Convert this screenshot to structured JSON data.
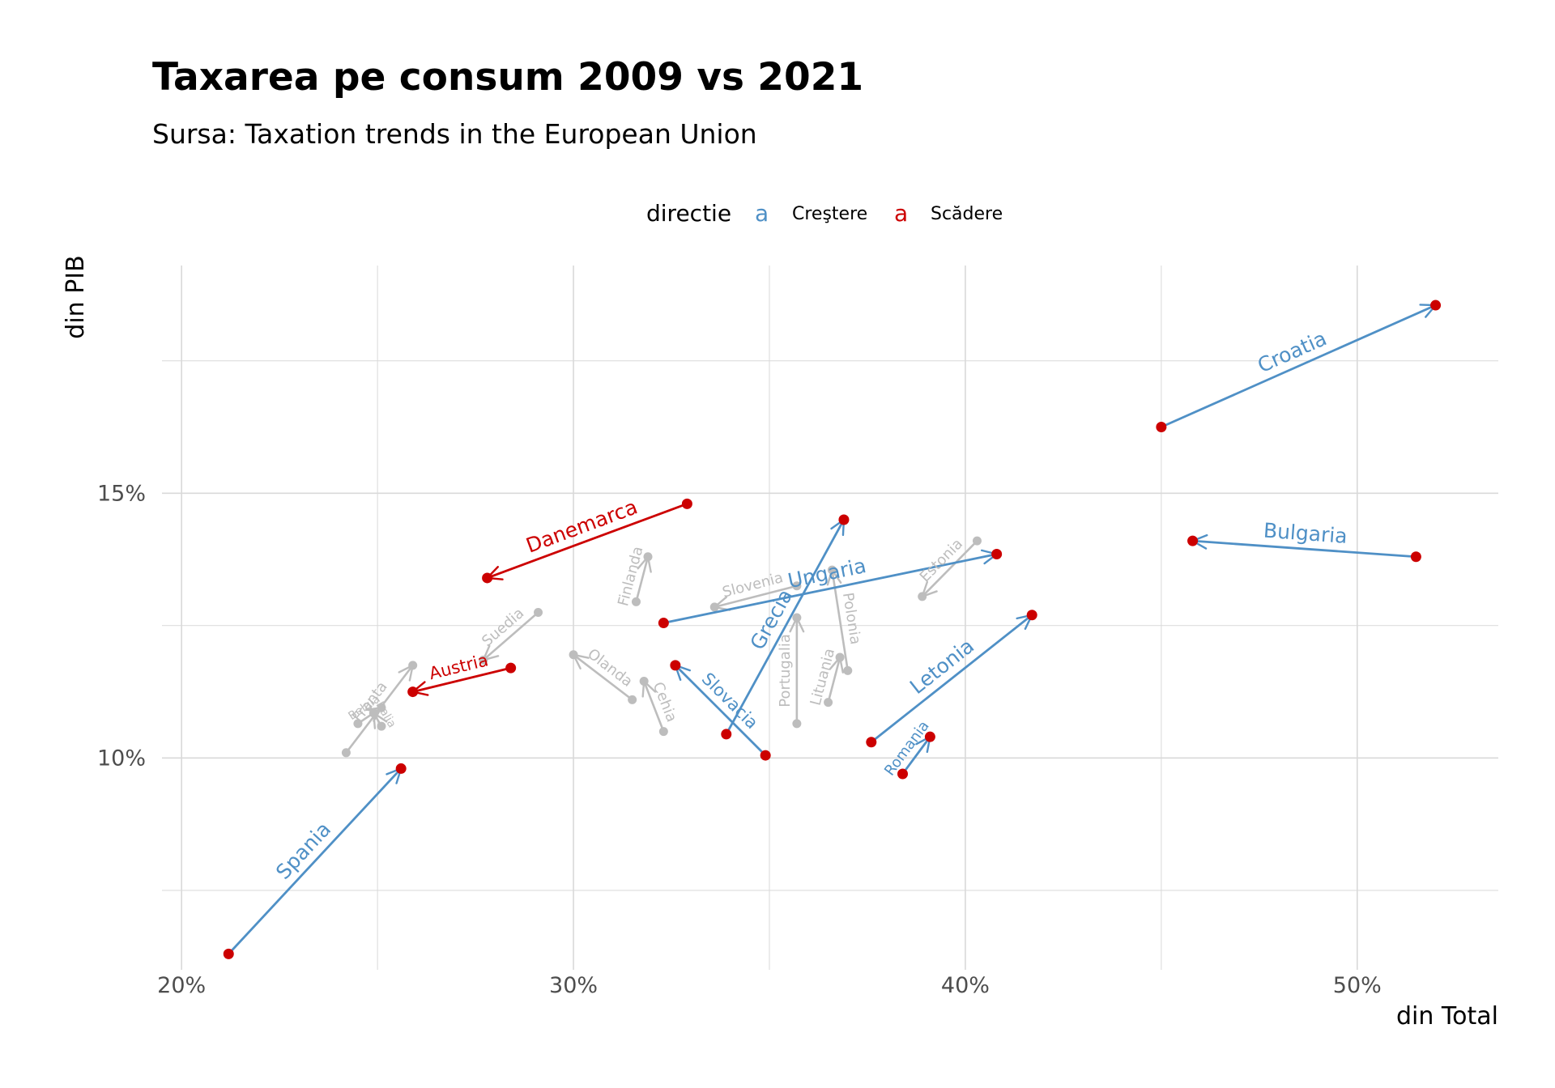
{
  "title": "Taxarea pe consum 2009 vs 2021",
  "subtitle": "Sursa: Taxation trends in the European Union",
  "legend": {
    "title": "directie",
    "glyph": "a",
    "items": [
      {
        "label": "Creştere",
        "color": "#4f90c6"
      },
      {
        "label": "Scădere",
        "color": "#cc0000"
      }
    ]
  },
  "colors": {
    "increase": "#4f90c6",
    "decrease": "#cc0000",
    "neutral": "#bdbdbd",
    "point_highlight": "#cc0000",
    "point_neutral": "#bdbdbd",
    "grid": "#d9d9d9"
  },
  "chart_data": {
    "type": "scatter",
    "xlabel": "din Total",
    "ylabel": "din PIB",
    "xlim": [
      19.5,
      53.6
    ],
    "ylim": [
      6.0,
      19.3
    ],
    "x_major_ticks": [
      20,
      30,
      40,
      50
    ],
    "x_minor_ticks": [
      25,
      35,
      45
    ],
    "x_tick_labels": [
      "20%",
      "30%",
      "40%",
      "50%"
    ],
    "y_major_ticks": [
      10,
      15
    ],
    "y_minor_ticks": [
      7.5,
      12.5,
      17.5
    ],
    "y_tick_labels": [
      "10%",
      "15%"
    ],
    "grid": true,
    "legend_position": "top",
    "series": [
      {
        "name": "Croatia",
        "group": "increase",
        "label_size": "large",
        "x": [
          45.0,
          52.0
        ],
        "y": [
          16.25,
          18.55
        ]
      },
      {
        "name": "Bulgaria",
        "group": "increase",
        "label_size": "large",
        "x": [
          51.5,
          45.8
        ],
        "y": [
          13.8,
          14.1
        ]
      },
      {
        "name": "Danemarca",
        "group": "decrease",
        "label_size": "large",
        "x": [
          32.9,
          27.8
        ],
        "y": [
          14.8,
          13.4
        ]
      },
      {
        "name": "Ungaria",
        "group": "increase",
        "label_size": "large",
        "x": [
          32.3,
          40.8
        ],
        "y": [
          12.55,
          13.85
        ]
      },
      {
        "name": "Grecia",
        "group": "increase",
        "label_size": "large",
        "x": [
          33.9,
          36.9
        ],
        "y": [
          10.45,
          14.5
        ]
      },
      {
        "name": "Letonia",
        "group": "increase",
        "label_size": "large",
        "x": [
          37.6,
          41.7
        ],
        "y": [
          10.3,
          12.7
        ]
      },
      {
        "name": "Spania",
        "group": "increase",
        "label_size": "large",
        "x": [
          21.2,
          25.6
        ],
        "y": [
          6.3,
          9.8
        ]
      },
      {
        "name": "Slovacia",
        "group": "increase",
        "label_size": "medium",
        "x": [
          34.9,
          32.6
        ],
        "y": [
          10.05,
          11.75
        ]
      },
      {
        "name": "Austria",
        "group": "decrease",
        "label_size": "medium",
        "x": [
          28.4,
          25.9
        ],
        "y": [
          11.7,
          11.25
        ]
      },
      {
        "name": "Romania",
        "group": "increase",
        "label_size": "small",
        "x": [
          38.4,
          39.1
        ],
        "y": [
          9.7,
          10.4
        ]
      },
      {
        "name": "Suedia",
        "group": "neutral",
        "label_size": "small",
        "x": [
          29.1,
          27.7
        ],
        "y": [
          12.75,
          11.85
        ]
      },
      {
        "name": "Finlanda",
        "group": "neutral",
        "label_size": "small",
        "x": [
          31.6,
          31.9
        ],
        "y": [
          12.95,
          13.8
        ]
      },
      {
        "name": "Olanda",
        "group": "neutral",
        "label_size": "small",
        "x": [
          31.5,
          30.0
        ],
        "y": [
          11.1,
          11.95
        ]
      },
      {
        "name": "Cehia",
        "group": "neutral",
        "label_size": "small",
        "x": [
          32.3,
          31.8
        ],
        "y": [
          10.5,
          11.45
        ]
      },
      {
        "name": "Slovenia",
        "group": "neutral",
        "label_size": "small",
        "x": [
          35.7,
          33.6
        ],
        "y": [
          13.25,
          12.85
        ]
      },
      {
        "name": "Portugalia",
        "group": "neutral",
        "label_size": "small",
        "x": [
          35.7,
          35.7
        ],
        "y": [
          10.65,
          12.65
        ]
      },
      {
        "name": "Polonia",
        "group": "neutral",
        "label_size": "small",
        "x": [
          37.0,
          36.6
        ],
        "y": [
          11.65,
          13.55
        ]
      },
      {
        "name": "Lituania",
        "group": "neutral",
        "label_size": "small",
        "x": [
          36.5,
          36.8
        ],
        "y": [
          11.05,
          11.9
        ]
      },
      {
        "name": "Estonia",
        "group": "neutral",
        "label_size": "small",
        "x": [
          40.3,
          38.9
        ],
        "y": [
          14.1,
          13.05
        ]
      },
      {
        "name": "Franta",
        "group": "neutral",
        "label_size": "small",
        "x": [
          24.2,
          25.9
        ],
        "y": [
          10.1,
          11.75
        ]
      },
      {
        "name": "Belgia",
        "group": "neutral",
        "label_size": "tiny",
        "x": [
          24.5,
          25.1
        ],
        "y": [
          10.65,
          10.95
        ]
      },
      {
        "name": "Italia",
        "group": "neutral",
        "label_size": "tiny",
        "x": [
          25.1,
          24.9
        ],
        "y": [
          10.6,
          10.85
        ]
      }
    ]
  }
}
